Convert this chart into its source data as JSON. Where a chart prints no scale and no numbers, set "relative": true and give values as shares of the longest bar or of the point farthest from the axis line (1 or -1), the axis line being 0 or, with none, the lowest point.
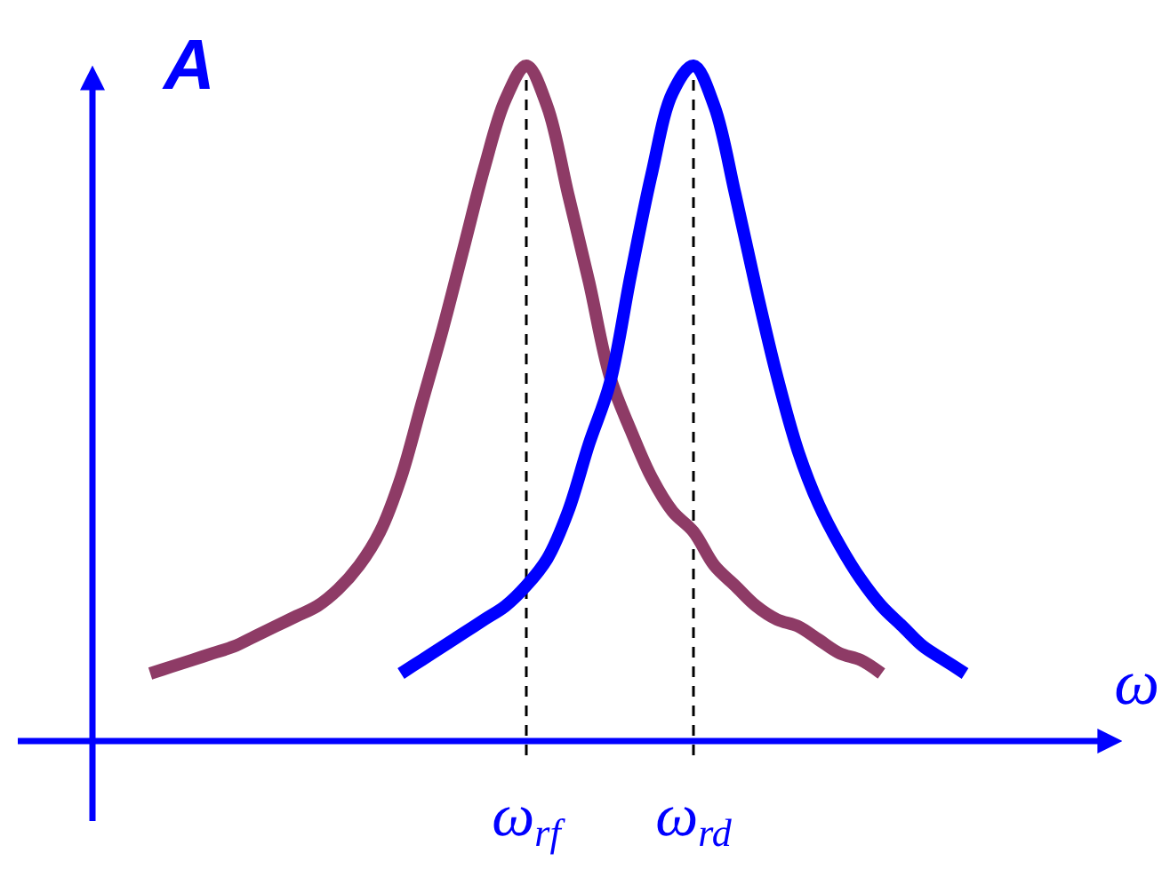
{
  "chart_data": {
    "type": "line",
    "relative": true,
    "xlabel": "ω",
    "ylabel": "A",
    "categories": [
      null,
      null,
      null,
      null,
      null,
      null,
      null,
      null,
      null,
      null,
      null,
      null,
      null,
      null,
      null,
      null,
      null,
      null,
      "ω$_{rf}$",
      null,
      null,
      null,
      null,
      null,
      null,
      null,
      "ω$_{rd}$",
      null,
      null,
      null,
      null,
      null,
      null,
      null,
      null,
      null,
      null,
      null,
      null,
      null
    ],
    "series": [
      {
        "color": "#8e3b66",
        "values": [
          0.1,
          0.11,
          0.12,
          0.13,
          0.14,
          0.155,
          0.17,
          0.185,
          0.2,
          0.225,
          0.26,
          0.31,
          0.39,
          0.5,
          0.61,
          0.73,
          0.85,
          0.95,
          1,
          0.94,
          0.81,
          0.68,
          0.54,
          0.46,
          0.39,
          0.34,
          0.31,
          0.26,
          0.23,
          0.2,
          0.18,
          0.17,
          0.15,
          0.13,
          0.12,
          0.1,
          null,
          null,
          null,
          null
        ]
      },
      {
        "color": "#0000ff",
        "values": [
          null,
          null,
          null,
          null,
          null,
          null,
          null,
          null,
          null,
          null,
          null,
          null,
          0.1,
          0.12,
          0.14,
          0.16,
          0.18,
          0.2,
          0.23,
          0.27,
          0.34,
          0.44,
          0.53,
          0.69,
          0.84,
          0.96,
          1,
          0.94,
          0.81,
          0.67,
          0.54,
          0.43,
          0.35,
          0.29,
          0.24,
          0.2,
          0.17,
          0.14,
          0.12,
          0.1
        ]
      }
    ],
    "ref_lines": [
      {
        "axis": "x",
        "value": "ω$_{rf}$",
        "color": "#000000",
        "line_style": "dashed"
      },
      {
        "axis": "x",
        "value": "ω$_{rd}$",
        "color": "#000000",
        "line_style": "dashed"
      }
    ]
  }
}
